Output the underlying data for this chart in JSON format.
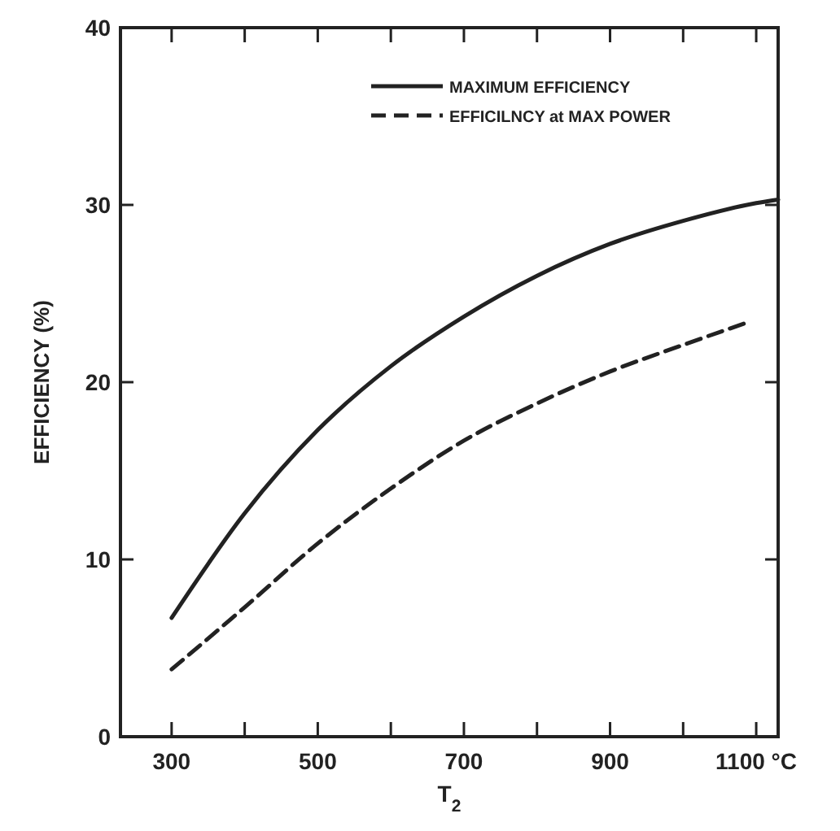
{
  "chart_data": {
    "type": "line",
    "xlabel": "T$_{2}$",
    "ylabel": "EFFICIENCY (%)",
    "x": [
      300,
      400,
      500,
      600,
      700,
      800,
      900,
      1000,
      1100,
      1130
    ],
    "xlim": [
      230,
      1130
    ],
    "ylim": [
      0,
      40
    ],
    "xticks": [
      300,
      {
        "value": 400,
        "label": null
      },
      500,
      {
        "value": 600,
        "label": null
      },
      700,
      {
        "value": 800,
        "label": null
      },
      900,
      {
        "value": 1000,
        "label": null
      },
      {
        "value": 1100,
        "label": "1100 °C"
      }
    ],
    "yticks": [
      0,
      10,
      20,
      30,
      40
    ],
    "legend": "top right",
    "grid": false,
    "marker": "none",
    "series": [
      {
        "name": "MAXIMUM EFFICIENCY",
        "color": "#222222",
        "line_style": "solid",
        "values": [
          6.7,
          12.6,
          17.3,
          20.9,
          23.7,
          26.0,
          27.8,
          29.1,
          30.1,
          30.3
        ]
      },
      {
        "name": "EFFICILNCY at MAX POWER",
        "color": "#222222",
        "line_style": "dashed",
        "x": [
          300,
          400,
          500,
          600,
          700,
          800,
          900,
          1000,
          1090
        ],
        "values": [
          3.8,
          7.3,
          10.9,
          14.0,
          16.7,
          18.8,
          20.6,
          22.1,
          23.4
        ]
      }
    ]
  }
}
